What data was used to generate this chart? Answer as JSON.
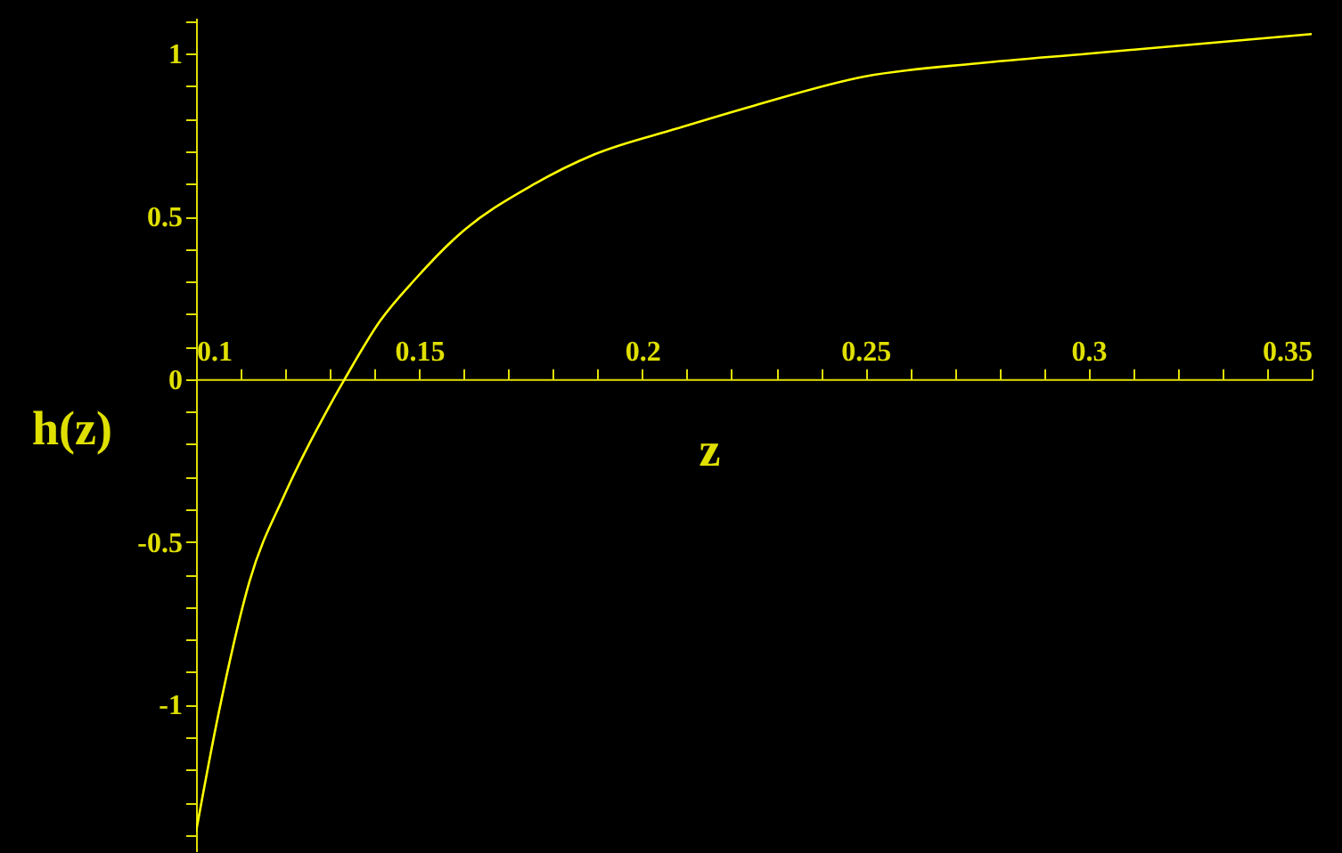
{
  "chart_data": {
    "type": "line",
    "xlabel": "z",
    "ylabel": "h(z)",
    "xlim": [
      0.1,
      0.35
    ],
    "ylim": [
      -1.45,
      1.11
    ],
    "xticks": [
      0.1,
      {
        "value": 0.11,
        "label": null
      },
      {
        "value": 0.12,
        "label": null
      },
      {
        "value": 0.13,
        "label": null
      },
      {
        "value": 0.14,
        "label": null
      },
      0.15,
      {
        "value": 0.16,
        "label": null
      },
      {
        "value": 0.17,
        "label": null
      },
      {
        "value": 0.18,
        "label": null
      },
      {
        "value": 0.19,
        "label": null
      },
      0.2,
      {
        "value": 0.21,
        "label": null
      },
      {
        "value": 0.22,
        "label": null
      },
      {
        "value": 0.23,
        "label": null
      },
      {
        "value": 0.24,
        "label": null
      },
      0.25,
      {
        "value": 0.26,
        "label": null
      },
      {
        "value": 0.27,
        "label": null
      },
      {
        "value": 0.28,
        "label": null
      },
      {
        "value": 0.29,
        "label": null
      },
      0.3,
      {
        "value": 0.31,
        "label": null
      },
      {
        "value": 0.32,
        "label": null
      },
      {
        "value": 0.33,
        "label": null
      },
      {
        "value": 0.34,
        "label": null
      },
      0.35
    ],
    "yticks": [
      {
        "value": -1.4,
        "label": null
      },
      {
        "value": -1.3,
        "label": null
      },
      {
        "value": -1.2,
        "label": null
      },
      {
        "value": -1.1,
        "label": null
      },
      -1,
      {
        "value": -0.9,
        "label": null
      },
      {
        "value": -0.8,
        "label": null
      },
      {
        "value": -0.7,
        "label": null
      },
      {
        "value": -0.6,
        "label": null
      },
      -0.5,
      {
        "value": -0.4,
        "label": null
      },
      {
        "value": -0.3,
        "label": null
      },
      {
        "value": -0.2,
        "label": null
      },
      {
        "value": -0.1,
        "label": null
      },
      0,
      {
        "value": 0.1,
        "label": null
      },
      {
        "value": 0.2,
        "label": null
      },
      {
        "value": 0.3,
        "label": null
      },
      {
        "value": 0.4,
        "label": null
      },
      0.5,
      {
        "value": 0.6,
        "label": null
      },
      {
        "value": 0.7,
        "label": null
      },
      {
        "value": 0.8,
        "label": null
      },
      {
        "value": 0.9,
        "label": null
      },
      1,
      {
        "value": 1.1,
        "label": null
      }
    ],
    "grid": false,
    "marker": "none",
    "line_style": "solid",
    "series": [
      {
        "color": "#ffff00",
        "x": [
          0.1,
          0.105,
          0.112,
          0.12,
          0.13,
          0.1333,
          0.1413,
          0.1493,
          0.1586,
          0.1759,
          0.1892,
          0.2078,
          0.225,
          0.25,
          0.275,
          0.3,
          0.325,
          0.35
        ],
        "values": [
          -1.39,
          -1.03,
          -0.62,
          -0.35,
          -0.08,
          0,
          0.18,
          0.31,
          0.44,
          0.6,
          0.69,
          0.77,
          0.84,
          0.93,
          0.97,
          1.0,
          1.03,
          1.06
        ]
      }
    ]
  }
}
